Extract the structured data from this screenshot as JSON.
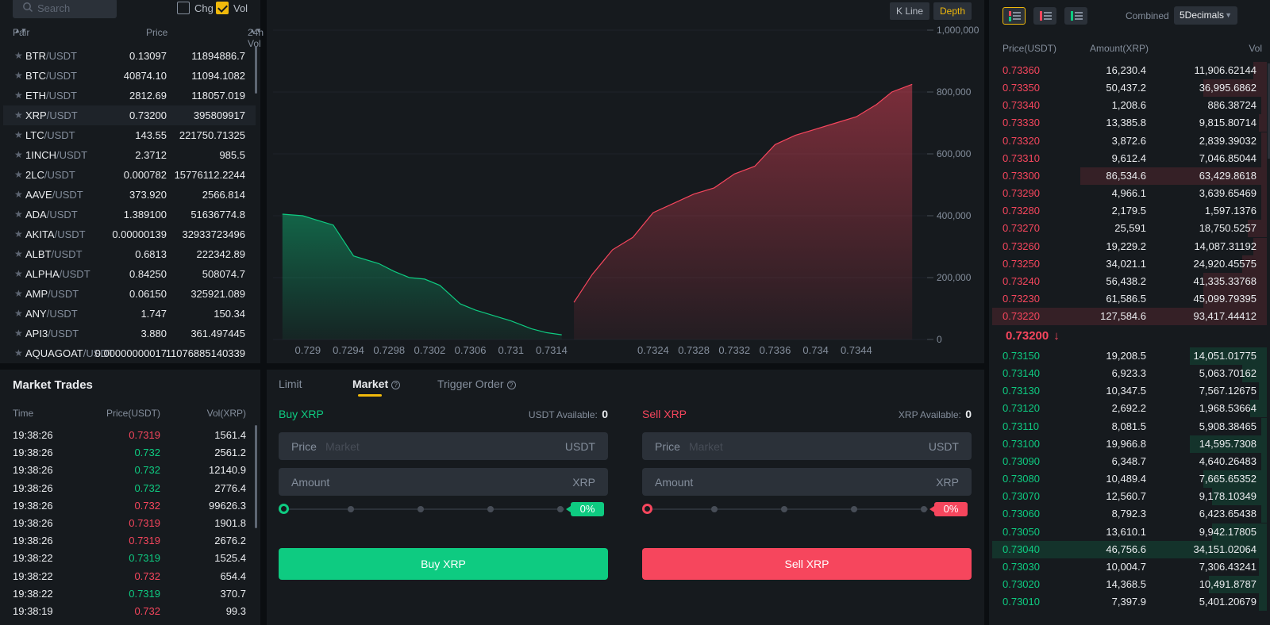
{
  "pairs": {
    "search_placeholder": "Search",
    "toggle_chg": "Chg",
    "toggle_vol": "Vol",
    "headers": {
      "pair": "Pair",
      "price": "Price",
      "vol": "24h Vol"
    },
    "rows": [
      {
        "base": "BTR",
        "quote": "/USDT",
        "price": "0.13097",
        "vol": "11894886.7"
      },
      {
        "base": "BTC",
        "quote": "/USDT",
        "price": "40874.10",
        "vol": "11094.1082"
      },
      {
        "base": "ETH",
        "quote": "/USDT",
        "price": "2812.69",
        "vol": "118057.019"
      },
      {
        "base": "XRP",
        "quote": "/USDT",
        "price": "0.73200",
        "vol": "395809917"
      },
      {
        "base": "LTC",
        "quote": "/USDT",
        "price": "143.55",
        "vol": "221750.71325"
      },
      {
        "base": "1INCH",
        "quote": "/USDT",
        "price": "2.3712",
        "vol": "985.5"
      },
      {
        "base": "2LC",
        "quote": "/USDT",
        "price": "0.000782",
        "vol": "15776112.2244"
      },
      {
        "base": "AAVE",
        "quote": "/USDT",
        "price": "373.920",
        "vol": "2566.814"
      },
      {
        "base": "ADA",
        "quote": "/USDT",
        "price": "1.389100",
        "vol": "51636774.8"
      },
      {
        "base": "AKITA",
        "quote": "/USDT",
        "price": "0.00000139",
        "vol": "32933723496"
      },
      {
        "base": "ALBT",
        "quote": "/USDT",
        "price": "0.6813",
        "vol": "222342.89"
      },
      {
        "base": "ALPHA",
        "quote": "/USDT",
        "price": "0.84250",
        "vol": "508074.7"
      },
      {
        "base": "AMP",
        "quote": "/USDT",
        "price": "0.06150",
        "vol": "325921.089"
      },
      {
        "base": "ANY",
        "quote": "/USDT",
        "price": "1.747",
        "vol": "150.34"
      },
      {
        "base": "API3",
        "quote": "/USDT",
        "price": "3.880",
        "vol": "361.497445"
      },
      {
        "base": "AQUAGOAT",
        "quote": "/USDT",
        "price": "0.00000000017",
        "vol": "11076885140339"
      }
    ]
  },
  "trades": {
    "title": "Market Trades",
    "headers": {
      "time": "Time",
      "price": "Price(USDT)",
      "vol": "Vol(XRP)"
    },
    "rows": [
      {
        "time": "19:38:26",
        "price": "0.7319",
        "vol": "1561.4",
        "side": "dn"
      },
      {
        "time": "19:38:26",
        "price": "0.732",
        "vol": "2561.2",
        "side": "up"
      },
      {
        "time": "19:38:26",
        "price": "0.732",
        "vol": "12140.9",
        "side": "up"
      },
      {
        "time": "19:38:26",
        "price": "0.732",
        "vol": "2776.4",
        "side": "up"
      },
      {
        "time": "19:38:26",
        "price": "0.732",
        "vol": "99626.3",
        "side": "dn"
      },
      {
        "time": "19:38:26",
        "price": "0.7319",
        "vol": "1901.8",
        "side": "dn"
      },
      {
        "time": "19:38:26",
        "price": "0.7319",
        "vol": "2676.2",
        "side": "dn"
      },
      {
        "time": "19:38:22",
        "price": "0.7319",
        "vol": "1525.4",
        "side": "up"
      },
      {
        "time": "19:38:22",
        "price": "0.732",
        "vol": "654.4",
        "side": "dn"
      },
      {
        "time": "19:38:22",
        "price": "0.7319",
        "vol": "370.7",
        "side": "up"
      },
      {
        "time": "19:38:19",
        "price": "0.732",
        "vol": "99.3",
        "side": "dn"
      }
    ]
  },
  "chart": {
    "kline_label": "K Line",
    "depth_label": "Depth"
  },
  "chart_data": {
    "type": "area",
    "x_ticks": [
      "0.729",
      "0.7294",
      "0.7298",
      "0.7302",
      "0.7306",
      "0.731",
      "0.7314",
      "0.7324",
      "0.7328",
      "0.7332",
      "0.7336",
      "0.734",
      "0.7344"
    ],
    "y_ticks": [
      "0",
      "200,000",
      "400,000",
      "600,000",
      "800,000",
      "1,000,000"
    ],
    "ylim": [
      0,
      1000000
    ],
    "series": [
      {
        "side": "bid",
        "color": "#0ecb81",
        "x": [
          0.72875,
          0.72895,
          0.7291,
          0.72925,
          0.72945,
          0.7297,
          0.72985,
          0.73,
          0.73015,
          0.7303,
          0.7305,
          0.73065,
          0.7308,
          0.731,
          0.7312,
          0.73135,
          0.7315
        ],
        "y": [
          405000,
          400000,
          385000,
          370000,
          270000,
          245000,
          220000,
          200000,
          195000,
          175000,
          115000,
          95000,
          80000,
          60000,
          35000,
          22000,
          15000
        ]
      },
      {
        "side": "ask",
        "color": "#f6465d",
        "x": [
          0.73162,
          0.7318,
          0.732,
          0.7322,
          0.7324,
          0.7326,
          0.7328,
          0.733,
          0.7332,
          0.7334,
          0.7336,
          0.7338,
          0.734,
          0.7342,
          0.7344,
          0.7346,
          0.73475,
          0.73495
        ],
        "y": [
          120000,
          210000,
          290000,
          330000,
          410000,
          440000,
          470000,
          490000,
          535000,
          560000,
          630000,
          660000,
          680000,
          700000,
          720000,
          760000,
          800000,
          825000
        ]
      }
    ]
  },
  "order": {
    "tabs": [
      "Limit",
      "Market",
      "Trigger Order"
    ],
    "buy": {
      "title": "Buy XRP",
      "avail_label": "USDT Available:",
      "avail_value": "0",
      "price_label": "Price",
      "price_placeholder": "Market",
      "price_unit": "USDT",
      "amount_label": "Amount",
      "amount_unit": "XRP",
      "pct": "0%",
      "button": "Buy XRP"
    },
    "sell": {
      "title": "Sell XRP",
      "avail_label": "XRP Available:",
      "avail_value": "0",
      "price_label": "Price",
      "price_placeholder": "Market",
      "price_unit": "USDT",
      "amount_label": "Amount",
      "amount_unit": "XRP",
      "pct": "0%",
      "button": "Sell XRP"
    }
  },
  "book": {
    "combined_label": "Combined",
    "decimals": "5Decimals",
    "headers": {
      "price": "Price(USDT)",
      "amount": "Amount(XRP)",
      "vol": "Vol"
    },
    "mid_price": "0.73200",
    "mid_arrow": "↓",
    "asks": [
      {
        "price": "0.73360",
        "amount": "16,230.4",
        "vol": "11,906.62144",
        "depth": 0.05
      },
      {
        "price": "0.73350",
        "amount": "50,437.2",
        "vol": "36,995.6862",
        "depth": 0.23
      },
      {
        "price": "0.73340",
        "amount": "1,208.6",
        "vol": "886.38724",
        "depth": 0.02
      },
      {
        "price": "0.73330",
        "amount": "13,385.8",
        "vol": "9,815.80714",
        "depth": 0.03
      },
      {
        "price": "0.73320",
        "amount": "3,872.6",
        "vol": "2,839.39032",
        "depth": 0.02
      },
      {
        "price": "0.73310",
        "amount": "9,612.4",
        "vol": "7,046.85044",
        "depth": 0.02
      },
      {
        "price": "0.73300",
        "amount": "86,534.6",
        "vol": "63,429.8618",
        "depth": 0.68
      },
      {
        "price": "0.73290",
        "amount": "4,966.1",
        "vol": "3,639.65469",
        "depth": 0.02
      },
      {
        "price": "0.73280",
        "amount": "2,179.5",
        "vol": "1,597.1376",
        "depth": 0.02
      },
      {
        "price": "0.73270",
        "amount": "25,591",
        "vol": "18,750.5257",
        "depth": 0.07
      },
      {
        "price": "0.73260",
        "amount": "19,229.2",
        "vol": "14,087.31192",
        "depth": 0.05
      },
      {
        "price": "0.73250",
        "amount": "34,021.1",
        "vol": "24,920.45575",
        "depth": 0.09
      },
      {
        "price": "0.73240",
        "amount": "56,438.2",
        "vol": "41,335.33768",
        "depth": 0.23
      },
      {
        "price": "0.73230",
        "amount": "61,586.5",
        "vol": "45,099.79395",
        "depth": 0.23
      },
      {
        "price": "0.73220",
        "amount": "127,584.6",
        "vol": "93,417.44412",
        "depth": 1.0
      }
    ],
    "bids": [
      {
        "price": "0.73150",
        "amount": "19,208.5",
        "vol": "14,051.01775",
        "depth": 0.28
      },
      {
        "price": "0.73140",
        "amount": "6,923.3",
        "vol": "5,063.70162",
        "depth": 0.09
      },
      {
        "price": "0.73130",
        "amount": "10,347.5",
        "vol": "7,567.12675",
        "depth": 0.03
      },
      {
        "price": "0.73120",
        "amount": "2,692.2",
        "vol": "1,968.53664",
        "depth": 0.06
      },
      {
        "price": "0.73110",
        "amount": "8,081.5",
        "vol": "5,908.38465",
        "depth": 0.02
      },
      {
        "price": "0.73100",
        "amount": "19,966.8",
        "vol": "14,595.7308",
        "depth": 0.28
      },
      {
        "price": "0.73090",
        "amount": "6,348.7",
        "vol": "4,640.26483",
        "depth": 0.02
      },
      {
        "price": "0.73080",
        "amount": "10,489.4",
        "vol": "7,665.65352",
        "depth": 0.23
      },
      {
        "price": "0.73070",
        "amount": "12,560.7",
        "vol": "9,178.10349",
        "depth": 0.2
      },
      {
        "price": "0.73060",
        "amount": "8,792.3",
        "vol": "6,423.65438",
        "depth": 0.02
      },
      {
        "price": "0.73050",
        "amount": "13,610.1",
        "vol": "9,942.17805",
        "depth": 0.2
      },
      {
        "price": "0.73040",
        "amount": "46,756.6",
        "vol": "34,151.02064",
        "depth": 1.0
      },
      {
        "price": "0.73030",
        "amount": "10,004.7",
        "vol": "7,306.43241",
        "depth": 0.03
      },
      {
        "price": "0.73020",
        "amount": "14,368.5",
        "vol": "10,491.8787",
        "depth": 0.21
      },
      {
        "price": "0.73010",
        "amount": "7,397.9",
        "vol": "5,401.20679",
        "depth": 0.03
      }
    ]
  },
  "colors": {
    "up": "#0ecb81",
    "down": "#f6465d",
    "accent": "#f0b90b",
    "panel": "#161a1e",
    "bg": "#0b0e11"
  },
  "icons": {
    "search": "search-icon",
    "star": "star-icon",
    "sort": "sort-icon",
    "help": "help-icon",
    "arrow_down": "arrow-down-icon"
  }
}
